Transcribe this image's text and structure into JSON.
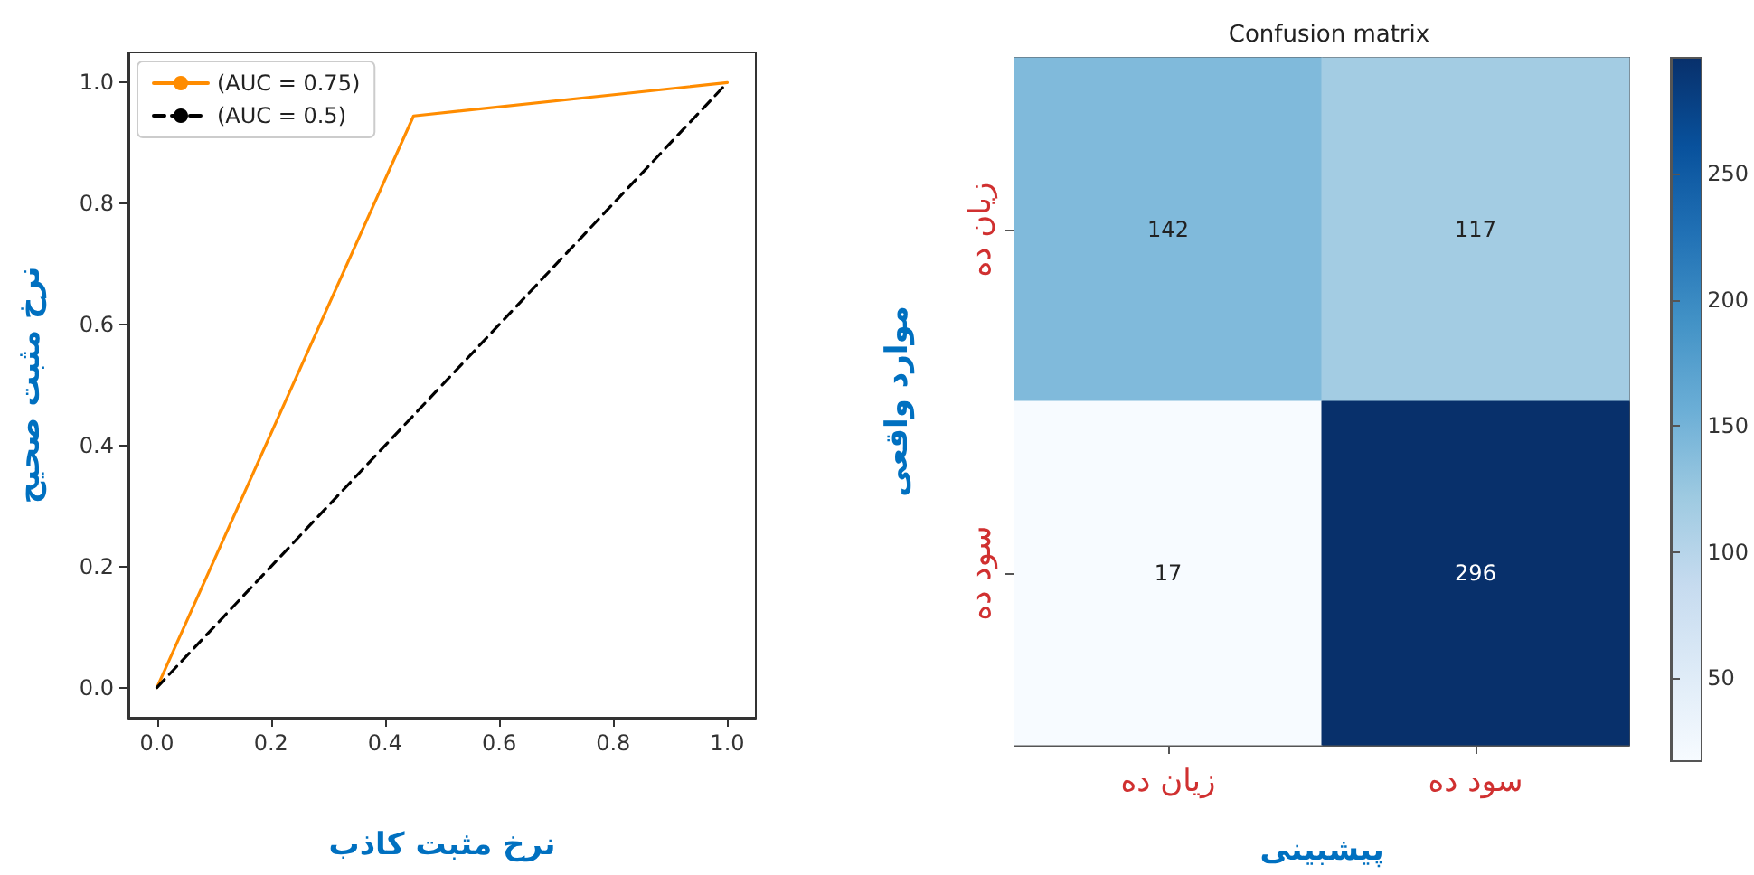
{
  "chart_data": [
    {
      "type": "line",
      "xlabel": "نرخ مثبت کاذب",
      "ylabel": "نرخ مثبت صحیح",
      "series": [
        {
          "name": "(AUC = 0.75)",
          "color": "#ff8c00",
          "x": [
            0,
            0.45,
            1
          ],
          "values": [
            0,
            0.945,
            1
          ],
          "line_style": "solid"
        },
        {
          "name": "(AUC = 0.5)",
          "color": "#000000",
          "x": [
            0,
            1
          ],
          "values": [
            0,
            1
          ],
          "line_style": "dashed"
        }
      ],
      "xlim": [
        -0.05,
        1.05
      ],
      "ylim": [
        -0.05,
        1.05
      ],
      "xticks": [
        {
          "value": 0,
          "label": "0.0"
        },
        0.2,
        0.4,
        0.6,
        0.8,
        {
          "value": 1,
          "label": "1.0"
        }
      ],
      "yticks": [
        {
          "value": 0,
          "label": "0.0"
        },
        0.2,
        0.4,
        0.6,
        0.8,
        {
          "value": 1,
          "label": "1.0"
        }
      ],
      "legend": "top left",
      "grid": false,
      "marker": "none"
    },
    {
      "type": "heatmap",
      "title": "Confusion matrix",
      "xlabel": "پیشبینی",
      "ylabel": "موارد واقعی",
      "categories": [
        "زیان ده",
        "سود ده"
      ],
      "y_categories": [
        "زیان ده",
        "سود ده"
      ],
      "cells": [
        [
          142,
          117
        ],
        [
          17,
          296
        ]
      ],
      "clim": [
        17,
        296
      ],
      "cticks": [
        50,
        100,
        150,
        200,
        250
      ],
      "data_labels": true
    }
  ]
}
